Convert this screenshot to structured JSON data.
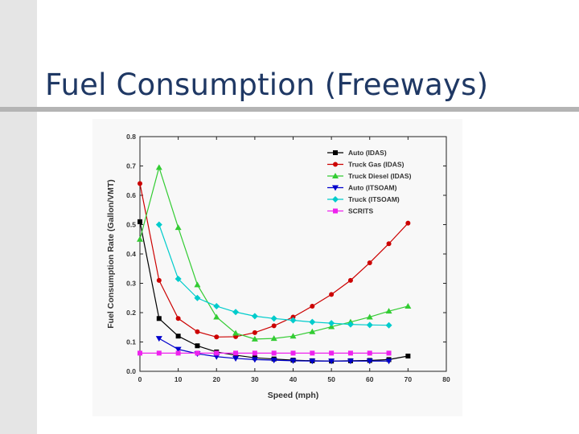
{
  "slide": {
    "title": "Fuel Consumption (Freeways)"
  },
  "chart_data": {
    "type": "line",
    "title": "",
    "xlabel": "Speed (mph)",
    "ylabel": "Fuel Consumption Rate (Gallon/VMT)",
    "xlim": [
      0,
      80
    ],
    "ylim": [
      0.0,
      0.8
    ],
    "x_ticks": [
      "0",
      "10",
      "20",
      "30",
      "40",
      "50",
      "60",
      "70",
      "80"
    ],
    "y_ticks": [
      "0.0",
      "0.1",
      "0.2",
      "0.3",
      "0.4",
      "0.5",
      "0.6",
      "0.7",
      "0.8"
    ],
    "legend_position": "top-right",
    "series": [
      {
        "name": "Auto (IDAS)",
        "color": "#000000",
        "marker": "square",
        "points": [
          [
            0,
            0.51
          ],
          [
            5,
            0.18
          ],
          [
            10,
            0.12
          ],
          [
            15,
            0.087
          ],
          [
            20,
            0.066
          ],
          [
            25,
            0.055
          ],
          [
            30,
            0.046
          ],
          [
            35,
            0.042
          ],
          [
            40,
            0.038
          ],
          [
            45,
            0.036
          ],
          [
            50,
            0.035
          ],
          [
            55,
            0.036
          ],
          [
            60,
            0.037
          ],
          [
            65,
            0.04
          ],
          [
            70,
            0.052
          ]
        ]
      },
      {
        "name": "Truck Gas (IDAS)",
        "color": "#cc0000",
        "marker": "circle",
        "points": [
          [
            0,
            0.64
          ],
          [
            5,
            0.31
          ],
          [
            10,
            0.18
          ],
          [
            15,
            0.135
          ],
          [
            20,
            0.117
          ],
          [
            25,
            0.118
          ],
          [
            30,
            0.132
          ],
          [
            35,
            0.155
          ],
          [
            40,
            0.185
          ],
          [
            45,
            0.222
          ],
          [
            50,
            0.262
          ],
          [
            55,
            0.31
          ],
          [
            60,
            0.37
          ],
          [
            65,
            0.435
          ],
          [
            70,
            0.505
          ]
        ]
      },
      {
        "name": "Truck Diesel (IDAS)",
        "color": "#33cc33",
        "marker": "triangle-up",
        "points": [
          [
            0,
            0.45
          ],
          [
            5,
            0.695
          ],
          [
            10,
            0.49
          ],
          [
            15,
            0.295
          ],
          [
            20,
            0.185
          ],
          [
            25,
            0.13
          ],
          [
            30,
            0.11
          ],
          [
            35,
            0.112
          ],
          [
            40,
            0.12
          ],
          [
            45,
            0.135
          ],
          [
            50,
            0.152
          ],
          [
            55,
            0.168
          ],
          [
            60,
            0.185
          ],
          [
            65,
            0.205
          ],
          [
            70,
            0.222
          ]
        ]
      },
      {
        "name": "Auto (ITSOAM)",
        "color": "#0000cc",
        "marker": "triangle-down",
        "points": [
          [
            5,
            0.112
          ],
          [
            10,
            0.075
          ],
          [
            15,
            0.06
          ],
          [
            20,
            0.05
          ],
          [
            25,
            0.044
          ],
          [
            30,
            0.04
          ],
          [
            35,
            0.038
          ],
          [
            40,
            0.036
          ],
          [
            45,
            0.035
          ],
          [
            50,
            0.035
          ],
          [
            55,
            0.035
          ],
          [
            60,
            0.035
          ],
          [
            65,
            0.035
          ]
        ]
      },
      {
        "name": "Truck (ITSOAM)",
        "color": "#00cccc",
        "marker": "diamond",
        "points": [
          [
            5,
            0.5
          ],
          [
            10,
            0.315
          ],
          [
            15,
            0.25
          ],
          [
            20,
            0.222
          ],
          [
            25,
            0.202
          ],
          [
            30,
            0.188
          ],
          [
            35,
            0.18
          ],
          [
            40,
            0.174
          ],
          [
            45,
            0.168
          ],
          [
            50,
            0.164
          ],
          [
            55,
            0.16
          ],
          [
            60,
            0.158
          ],
          [
            65,
            0.157
          ]
        ]
      },
      {
        "name": "SCRITS",
        "color": "#ee22ee",
        "marker": "square",
        "points": [
          [
            0,
            0.062
          ],
          [
            5,
            0.062
          ],
          [
            10,
            0.062
          ],
          [
            15,
            0.062
          ],
          [
            20,
            0.062
          ],
          [
            25,
            0.062
          ],
          [
            30,
            0.062
          ],
          [
            35,
            0.062
          ],
          [
            40,
            0.062
          ],
          [
            45,
            0.062
          ],
          [
            50,
            0.062
          ],
          [
            55,
            0.062
          ],
          [
            60,
            0.062
          ],
          [
            65,
            0.062
          ]
        ]
      }
    ]
  }
}
